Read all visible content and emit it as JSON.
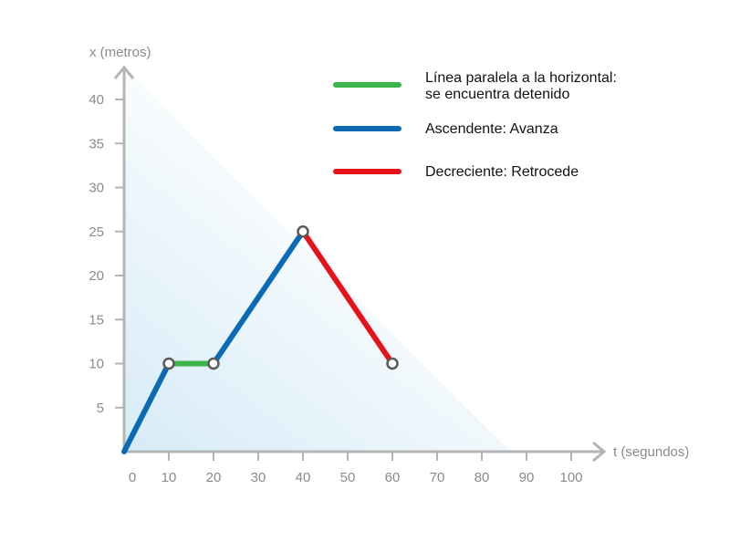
{
  "chart_data": {
    "type": "line",
    "xlabel": "t (segundos)",
    "ylabel": "x (metros)",
    "xlim": [
      0,
      100
    ],
    "ylim": [
      0,
      40
    ],
    "x_ticks": [
      0,
      10,
      20,
      30,
      40,
      50,
      60,
      70,
      80,
      90,
      100
    ],
    "y_ticks": [
      5,
      10,
      15,
      20,
      25,
      30,
      35,
      40
    ],
    "grid": false,
    "legend_placement": "top-right",
    "points": [
      {
        "t": 0,
        "x": 0
      },
      {
        "t": 10,
        "x": 10
      },
      {
        "t": 20,
        "x": 10
      },
      {
        "t": 40,
        "x": 25
      },
      {
        "t": 60,
        "x": 10
      }
    ],
    "series": [
      {
        "name": "Ascendente: Avanza",
        "color": "#0a6ab4",
        "points": [
          [
            0,
            0
          ],
          [
            10,
            10
          ]
        ]
      },
      {
        "name": "Línea paralela a la horizontal: se encuentra detenido",
        "color": "#3cb44b",
        "points": [
          [
            10,
            10
          ],
          [
            20,
            10
          ]
        ]
      },
      {
        "name": "Ascendente: Avanza",
        "color": "#0a6ab4",
        "points": [
          [
            20,
            10
          ],
          [
            40,
            25
          ]
        ]
      },
      {
        "name": "Decreciente: Retrocede",
        "color": "#e8131a",
        "points": [
          [
            40,
            25
          ],
          [
            60,
            10
          ]
        ]
      }
    ],
    "markers": [
      [
        10,
        10
      ],
      [
        20,
        10
      ],
      [
        40,
        25
      ],
      [
        60,
        10
      ]
    ],
    "legend": [
      {
        "color": "#3cb44b",
        "lines": [
          "Línea paralela a la horizontal:",
          "se encuentra detenido"
        ]
      },
      {
        "color": "#0a6ab4",
        "lines": [
          "Ascendente: Avanza"
        ]
      },
      {
        "color": "#e8131a",
        "lines": [
          "Decreciente: Retrocede"
        ]
      }
    ],
    "colors": {
      "axis": "#b4b4b4",
      "tick_text": "#8a8a8a",
      "background_gradient": "#d6ebf7",
      "marker_stroke": "#5a5a5a"
    }
  }
}
